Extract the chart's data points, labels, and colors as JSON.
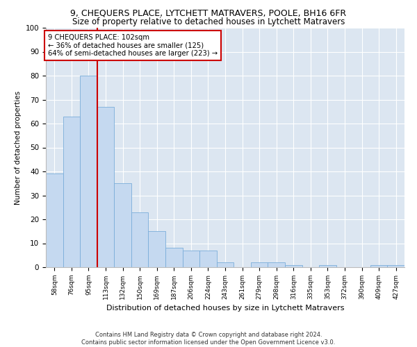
{
  "title": "9, CHEQUERS PLACE, LYTCHETT MATRAVERS, POOLE, BH16 6FR",
  "subtitle": "Size of property relative to detached houses in Lytchett Matravers",
  "xlabel": "Distribution of detached houses by size in Lytchett Matravers",
  "ylabel": "Number of detached properties",
  "footer1": "Contains HM Land Registry data © Crown copyright and database right 2024.",
  "footer2": "Contains public sector information licensed under the Open Government Licence v3.0.",
  "categories": [
    "58sqm",
    "76sqm",
    "95sqm",
    "113sqm",
    "132sqm",
    "150sqm",
    "169sqm",
    "187sqm",
    "206sqm",
    "224sqm",
    "243sqm",
    "261sqm",
    "279sqm",
    "298sqm",
    "316sqm",
    "335sqm",
    "353sqm",
    "372sqm",
    "390sqm",
    "409sqm",
    "427sqm"
  ],
  "values": [
    39,
    63,
    80,
    67,
    35,
    23,
    15,
    8,
    7,
    7,
    2,
    0,
    2,
    2,
    1,
    0,
    1,
    0,
    0,
    1,
    1
  ],
  "bar_color": "#c5d9f0",
  "bar_edge_color": "#7aadda",
  "red_line_x": 2.5,
  "annotation_text": "9 CHEQUERS PLACE: 102sqm\n← 36% of detached houses are smaller (125)\n64% of semi-detached houses are larger (223) →",
  "annotation_box_color": "#ffffff",
  "annotation_box_edge": "#cc0000",
  "red_line_color": "#cc0000",
  "ylim": [
    0,
    100
  ],
  "yticks": [
    0,
    10,
    20,
    30,
    40,
    50,
    60,
    70,
    80,
    90,
    100
  ],
  "plot_bg_color": "#dce6f1",
  "fig_bg_color": "#ffffff",
  "grid_color": "#ffffff",
  "title_fontsize": 9,
  "subtitle_fontsize": 8.5
}
